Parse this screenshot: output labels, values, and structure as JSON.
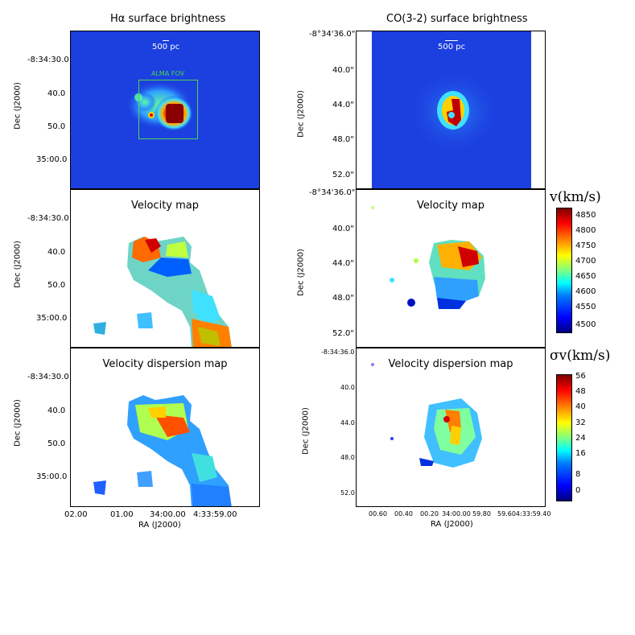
{
  "left": {
    "top_title": "Hα surface brightness",
    "scale_bar": "500 pc",
    "fov_label": "ALMA FOV",
    "velocity_title": "Velocity map",
    "dispersion_title": "Velocity dispersion map",
    "ylabel": "Dec (J2000)",
    "xlabel": "RA (J2000)",
    "yticks": [
      "-8:34:30.0",
      "40.0",
      "50.0",
      "35:00.0"
    ],
    "xticks": [
      "02.00",
      "01.00",
      "34:00.00",
      "4:33:59.00"
    ]
  },
  "right": {
    "top_title": "CO(3-2) surface brightness",
    "scale_bar": "500 pc",
    "velocity_title": "Velocity map",
    "dispersion_title": "Velocity dispersion map",
    "ylabel": "Dec (J2000)",
    "xlabel": "RA (J2000)",
    "yticks_top": [
      "-8°34'36.0\"",
      "40.0\"",
      "44.0\"",
      "48.0\"",
      "52.0\""
    ],
    "yticks_mid": [
      "-8°34'36.0\"",
      "40.0\"",
      "44.0\"",
      "48.0\"",
      "52.0\""
    ],
    "yticks_bot": [
      "-8:34:36.0",
      "40.0",
      "44.0",
      "48.0",
      "52.0"
    ],
    "xticks": [
      "00.60",
      "00.40",
      "00.20",
      "34:00.00",
      "59.80",
      "59.604:33:59.40"
    ]
  },
  "colorbar_velocity": {
    "label": "v(km/s)",
    "ticks": [
      "4850",
      "4800",
      "4750",
      "4700",
      "4650",
      "4600",
      "4550",
      "4500"
    ]
  },
  "colorbar_dispersion": {
    "label": "σv(km/s)",
    "ticks": [
      "56",
      "48",
      "40",
      "32",
      "24",
      "16",
      "8",
      "0"
    ]
  },
  "colors": {
    "background_blue": "#0a2fd6",
    "fov_box": "#4cd44c"
  }
}
